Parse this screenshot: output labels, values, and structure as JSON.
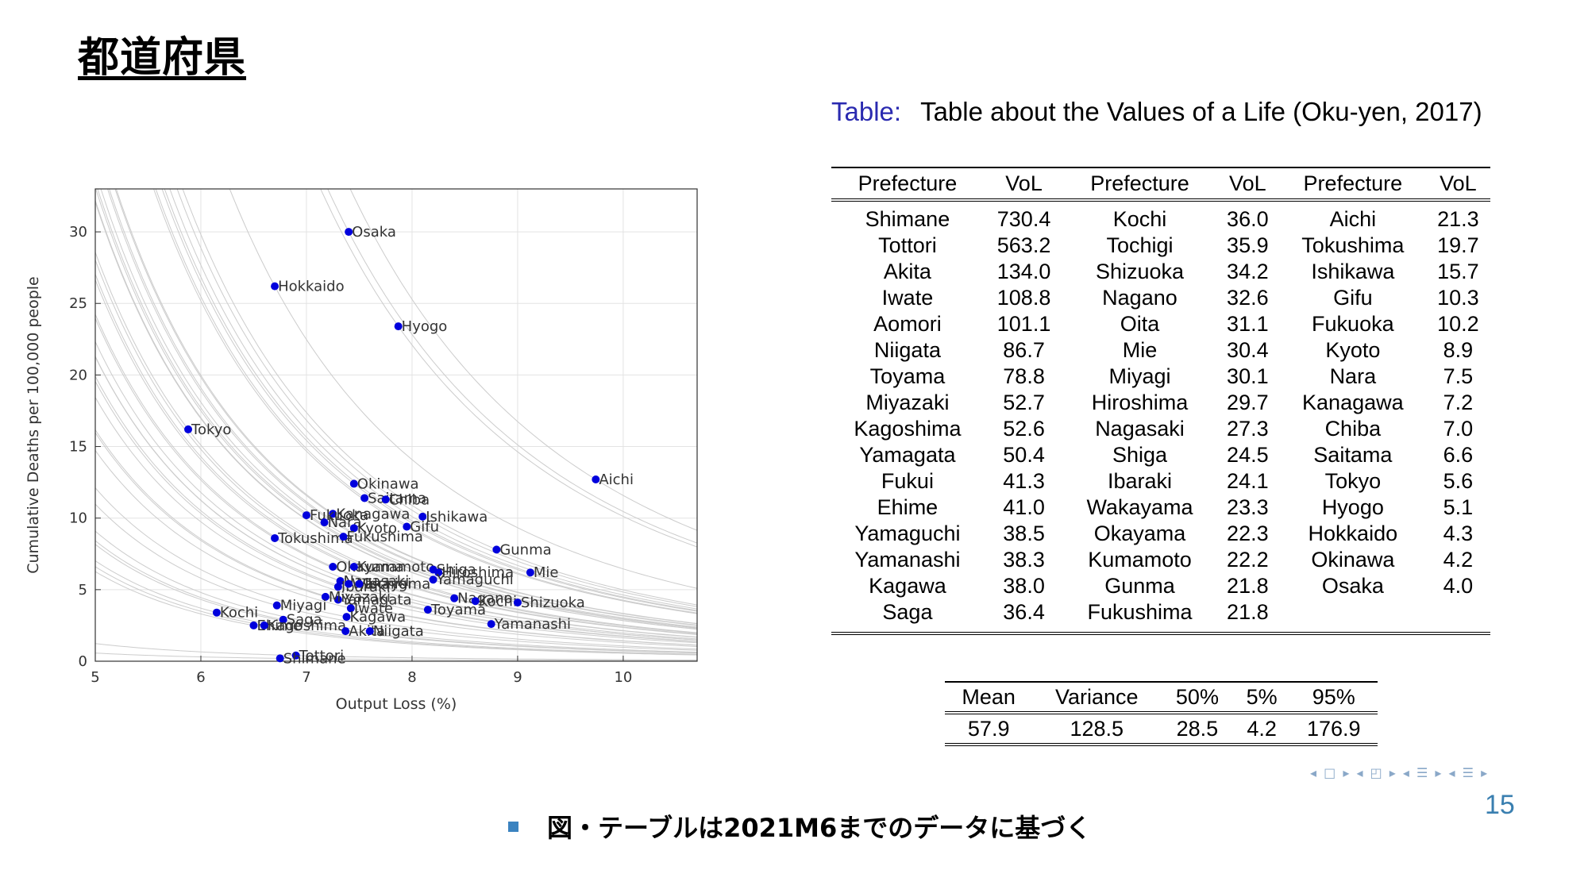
{
  "slide": {
    "title": "都道府県",
    "page_number": "15",
    "footnote": "図・テーブルは2021M6までのデータに基づく",
    "nav_symbols": "◂ □ ▸  ◂ ◰ ▸  ◂ ☰ ▸  ◂ ☰ ▸"
  },
  "colors": {
    "points": "#0000dd",
    "curves": "#cccccc",
    "caption_label": "#2a2ab0",
    "page_number": "#3a7fb0",
    "bullet": "#3b83c0"
  },
  "chart_data": {
    "type": "scatter",
    "xlabel": "Output Loss (%)",
    "ylabel": "Cumulative Deaths per 100,000 people",
    "xlim": [
      5,
      10.7
    ],
    "ylim": [
      0,
      33
    ],
    "xticks": [
      5,
      6,
      7,
      8,
      9,
      10
    ],
    "yticks": [
      0,
      5,
      10,
      15,
      20,
      25,
      30
    ],
    "grid": true,
    "indifference_curves_shown": true,
    "points": [
      {
        "label": "Osaka",
        "x": 7.4,
        "y": 30.0
      },
      {
        "label": "Hokkaido",
        "x": 6.7,
        "y": 26.2
      },
      {
        "label": "Hyogo",
        "x": 7.87,
        "y": 23.4
      },
      {
        "label": "Tokyo",
        "x": 5.88,
        "y": 16.2
      },
      {
        "label": "Aichi",
        "x": 9.74,
        "y": 12.7
      },
      {
        "label": "Okinawa",
        "x": 7.45,
        "y": 12.4
      },
      {
        "label": "Saitama",
        "x": 7.55,
        "y": 11.4
      },
      {
        "label": "Chiba",
        "x": 7.75,
        "y": 11.3
      },
      {
        "label": "Kanagawa",
        "x": 7.25,
        "y": 10.3
      },
      {
        "label": "Fukuoka",
        "x": 7.0,
        "y": 10.2
      },
      {
        "label": "Ishikawa",
        "x": 8.1,
        "y": 10.1
      },
      {
        "label": "Nara",
        "x": 7.17,
        "y": 9.7
      },
      {
        "label": "Kyoto",
        "x": 7.45,
        "y": 9.3
      },
      {
        "label": "Gifu",
        "x": 7.95,
        "y": 9.4
      },
      {
        "label": "Tokushima",
        "x": 6.7,
        "y": 8.6
      },
      {
        "label": "Fukushima",
        "x": 7.35,
        "y": 8.7
      },
      {
        "label": "Gunma",
        "x": 8.8,
        "y": 7.8
      },
      {
        "label": "Okayama",
        "x": 7.25,
        "y": 6.6
      },
      {
        "label": "Kumamoto",
        "x": 7.45,
        "y": 6.6
      },
      {
        "label": "Shiga",
        "x": 8.2,
        "y": 6.4
      },
      {
        "label": "Hiroshima",
        "x": 8.25,
        "y": 6.2
      },
      {
        "label": "Mie",
        "x": 9.12,
        "y": 6.2
      },
      {
        "label": "Yamaguchi",
        "x": 8.2,
        "y": 5.7
      },
      {
        "label": "Nagasaki",
        "x": 7.32,
        "y": 5.6
      },
      {
        "label": "Ibaraki",
        "x": 7.3,
        "y": 5.2
      },
      {
        "label": "Wakayama",
        "x": 7.4,
        "y": 5.4
      },
      {
        "label": "Tochigi",
        "x": 7.5,
        "y": 5.4
      },
      {
        "label": "Nagano",
        "x": 8.4,
        "y": 4.4
      },
      {
        "label": "Yamagata",
        "x": 7.3,
        "y": 4.3
      },
      {
        "label": "Kochi",
        "x": 8.6,
        "y": 4.2
      },
      {
        "label": "Shizuoka",
        "x": 9.0,
        "y": 4.1
      },
      {
        "label": "Miyazaki",
        "x": 7.18,
        "y": 4.5
      },
      {
        "label": "Miyagi",
        "x": 6.72,
        "y": 3.9
      },
      {
        "label": "Iwate",
        "x": 7.42,
        "y": 3.7
      },
      {
        "label": "Toyama",
        "x": 8.15,
        "y": 3.6
      },
      {
        "label": "Kochi",
        "x": 6.15,
        "y": 3.4
      },
      {
        "label": "Kagawa",
        "x": 7.38,
        "y": 3.1
      },
      {
        "label": "Saga",
        "x": 6.78,
        "y": 2.9
      },
      {
        "label": "Yamanashi",
        "x": 8.75,
        "y": 2.6
      },
      {
        "label": "Ehime",
        "x": 6.5,
        "y": 2.5
      },
      {
        "label": "Kagoshima",
        "x": 6.6,
        "y": 2.5
      },
      {
        "label": "Akita",
        "x": 7.37,
        "y": 2.1
      },
      {
        "label": "Niigata",
        "x": 7.6,
        "y": 2.1
      },
      {
        "label": "Tottori",
        "x": 6.9,
        "y": 0.4
      },
      {
        "label": "Shimane",
        "x": 6.75,
        "y": 0.2
      }
    ]
  },
  "caption": {
    "label": "Table:",
    "text": "Table about the Values of a Life (Oku-yen, 2017)"
  },
  "vol_table": {
    "headers": [
      "Prefecture",
      "VoL",
      "Prefecture",
      "VoL",
      "Prefecture",
      "VoL"
    ],
    "rows": [
      [
        "Shimane",
        "730.4",
        "Kochi",
        "36.0",
        "Aichi",
        "21.3"
      ],
      [
        "Tottori",
        "563.2",
        "Tochigi",
        "35.9",
        "Tokushima",
        "19.7"
      ],
      [
        "Akita",
        "134.0",
        "Shizuoka",
        "34.2",
        "Ishikawa",
        "15.7"
      ],
      [
        "Iwate",
        "108.8",
        "Nagano",
        "32.6",
        "Gifu",
        "10.3"
      ],
      [
        "Aomori",
        "101.1",
        "Oita",
        "31.1",
        "Fukuoka",
        "10.2"
      ],
      [
        "Niigata",
        "86.7",
        "Mie",
        "30.4",
        "Kyoto",
        "8.9"
      ],
      [
        "Toyama",
        "78.8",
        "Miyagi",
        "30.1",
        "Nara",
        "7.5"
      ],
      [
        "Miyazaki",
        "52.7",
        "Hiroshima",
        "29.7",
        "Kanagawa",
        "7.2"
      ],
      [
        "Kagoshima",
        "52.6",
        "Nagasaki",
        "27.3",
        "Chiba",
        "7.0"
      ],
      [
        "Yamagata",
        "50.4",
        "Shiga",
        "24.5",
        "Saitama",
        "6.6"
      ],
      [
        "Fukui",
        "41.3",
        "Ibaraki",
        "24.1",
        "Tokyo",
        "5.6"
      ],
      [
        "Ehime",
        "41.0",
        "Wakayama",
        "23.3",
        "Hyogo",
        "5.1"
      ],
      [
        "Yamaguchi",
        "38.5",
        "Okayama",
        "22.3",
        "Hokkaido",
        "4.3"
      ],
      [
        "Yamanashi",
        "38.3",
        "Kumamoto",
        "22.2",
        "Okinawa",
        "4.2"
      ],
      [
        "Kagawa",
        "38.0",
        "Gunma",
        "21.8",
        "Osaka",
        "4.0"
      ],
      [
        "Saga",
        "36.4",
        "Fukushima",
        "21.8",
        "",
        ""
      ]
    ]
  },
  "stats_table": {
    "headers": [
      "Mean",
      "Variance",
      "50%",
      "5%",
      "95%"
    ],
    "values": [
      "57.9",
      "128.5",
      "28.5",
      "4.2",
      "176.9"
    ]
  }
}
